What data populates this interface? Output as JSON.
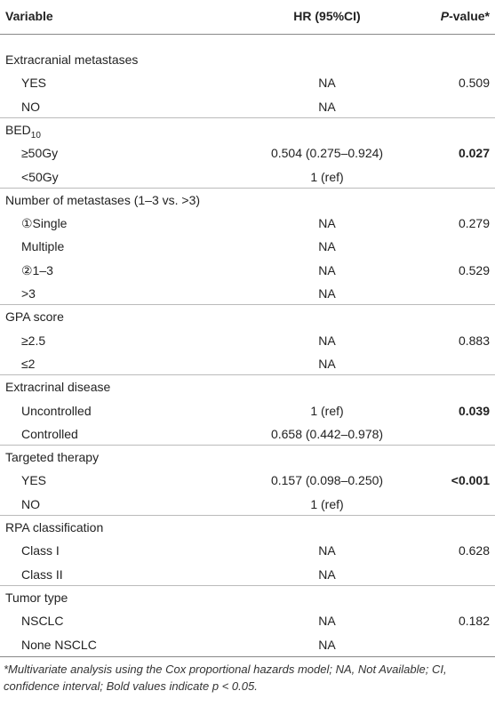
{
  "table": {
    "columns": [
      {
        "text": "Variable"
      },
      {
        "text": "HR (95%CI)"
      },
      {
        "italic": "P",
        "text": "-value*"
      }
    ],
    "groups": [
      {
        "label": "Extracranial metastases",
        "rows": [
          {
            "label": "YES",
            "hr": "NA",
            "p": "0.509"
          },
          {
            "label": "NO",
            "hr": "NA"
          }
        ]
      },
      {
        "label": "BED",
        "subscript": "10",
        "rows": [
          {
            "label": "≥50Gy",
            "hr": "0.504 (0.275–0.924)",
            "p": "0.027",
            "bold": true
          },
          {
            "label": "<50Gy",
            "hr": "1 (ref)"
          }
        ]
      },
      {
        "label": "Number of metastases (1–3 vs. >3)",
        "rows": [
          {
            "label": "①Single",
            "hr": "NA",
            "p": "0.279"
          },
          {
            "label": "Multiple",
            "hr": "NA"
          },
          {
            "label": "②1–3",
            "hr": "NA",
            "p": "0.529"
          },
          {
            "label": ">3",
            "hr": "NA"
          }
        ]
      },
      {
        "label": "GPA score",
        "rows": [
          {
            "label": "≥2.5",
            "hr": "NA",
            "p": "0.883"
          },
          {
            "label": "≤2",
            "hr": "NA"
          }
        ]
      },
      {
        "label": "Extracrinal disease",
        "rows": [
          {
            "label": "Uncontrolled",
            "hr": "1 (ref)",
            "p": "0.039",
            "bold": true
          },
          {
            "label": "Controlled",
            "hr": "0.658 (0.442–0.978)"
          }
        ]
      },
      {
        "label": "Targeted therapy",
        "rows": [
          {
            "label": "YES",
            "hr": "0.157 (0.098–0.250)",
            "p": "<0.001",
            "bold": true
          },
          {
            "label": "NO",
            "hr": "1 (ref)"
          }
        ]
      },
      {
        "label": "RPA classification",
        "rows": [
          {
            "label": "Class I",
            "hr": "NA",
            "p": "0.628"
          },
          {
            "label": "Class II",
            "hr": "NA"
          }
        ]
      },
      {
        "label": "Tumor type",
        "rows": [
          {
            "label": "NSCLC",
            "hr": "NA",
            "p": "0.182"
          },
          {
            "label": "None NSCLC",
            "hr": "NA"
          }
        ]
      }
    ]
  },
  "footnote": "*Multivariate analysis using the Cox proportional hazards model; NA, Not Available; CI, confidence interval; Bold values indicate p < 0.05."
}
